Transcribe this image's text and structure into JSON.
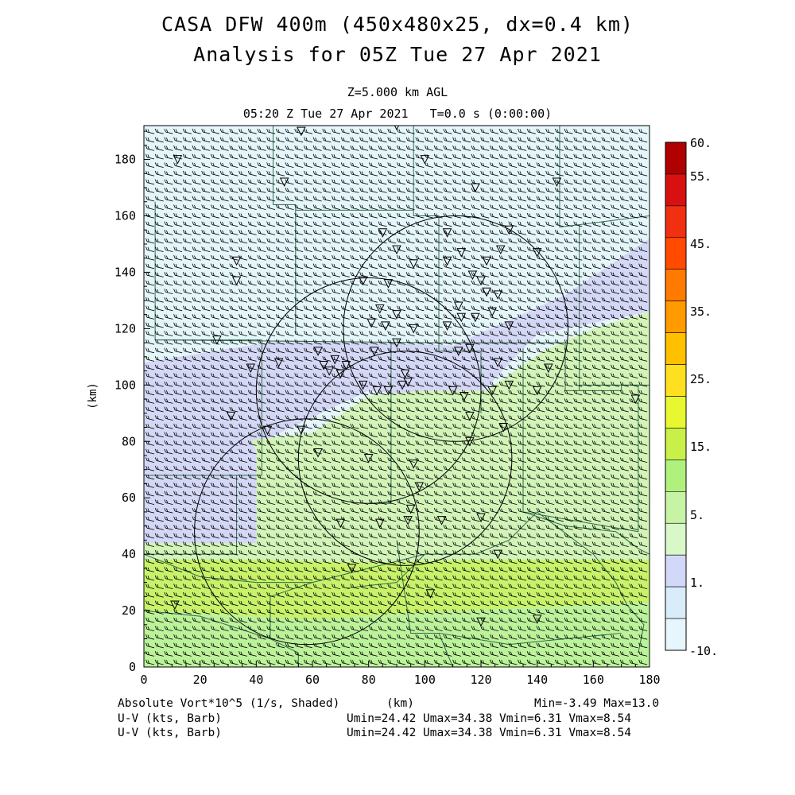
{
  "title": "CASA DFW 400m (450x480x25, dx=0.4 km)",
  "subtitle": "Analysis for 05Z Tue 27 Apr 2021",
  "level_label": "Z=5.000 km AGL",
  "time_label": "05:20 Z Tue 27 Apr 2021   T=0.0 s (0:00:00)",
  "axes": {
    "x_ticks": [
      "0",
      "20",
      "40",
      "60",
      "80",
      "100",
      "120",
      "140",
      "160",
      "180"
    ],
    "y_ticks": [
      "0",
      "20",
      "40",
      "60",
      "80",
      "100",
      "120",
      "140",
      "160",
      "180"
    ],
    "x_unit": "(km)",
    "y_unit": "(km)",
    "xlim": [
      0,
      180
    ],
    "ylim": [
      0,
      192
    ]
  },
  "colorbar": {
    "labels": [
      "60.",
      "55.",
      "45.",
      "35.",
      "25.",
      "15.",
      "5.",
      "1.",
      "-10."
    ],
    "colors": [
      "#b00000",
      "#d81010",
      "#f03010",
      "#ff4a00",
      "#ff7a00",
      "#ff9a00",
      "#ffc000",
      "#ffe020",
      "#e8f830",
      "#c8f048",
      "#b0f07c",
      "#c6f4a4",
      "#d8f8c8",
      "#d2d8f8",
      "#d8ecfa",
      "#e6f6fc"
    ]
  },
  "field": {
    "colors": {
      "light_blue": "#e4f6fa",
      "lavender": "#d4d8f6",
      "light_green": "#d2f4b8",
      "mid_green": "#bcf29a",
      "yellow_green": "#c8f26a"
    }
  },
  "footer": {
    "field_label": "Absolute Vort*10^5 (1/s, Shaded)",
    "unit_label": "(km)",
    "min_max": "Min=-3.49 Max=13.0",
    "barb_label_1": "U-V (kts, Barb)",
    "barb_label_2": "U-V (kts, Barb)",
    "uv_stats_1": "Umin=24.42 Umax=34.38 Vmin=6.31 Vmax=8.54",
    "uv_stats_2": "Umin=24.42 Umax=34.38 Vmin=6.31 Vmax=8.54"
  },
  "radars": [
    {
      "name": "radar-ring-1",
      "center_km": [
        58,
        48
      ],
      "radius_km": 40
    },
    {
      "name": "radar-ring-2",
      "center_km": [
        93,
        74
      ],
      "radius_km": 38
    },
    {
      "name": "radar-ring-3",
      "center_km": [
        80,
        98
      ],
      "radius_km": 40
    },
    {
      "name": "radar-ring-4",
      "center_km": [
        111,
        120
      ],
      "radius_km": 40
    }
  ]
}
